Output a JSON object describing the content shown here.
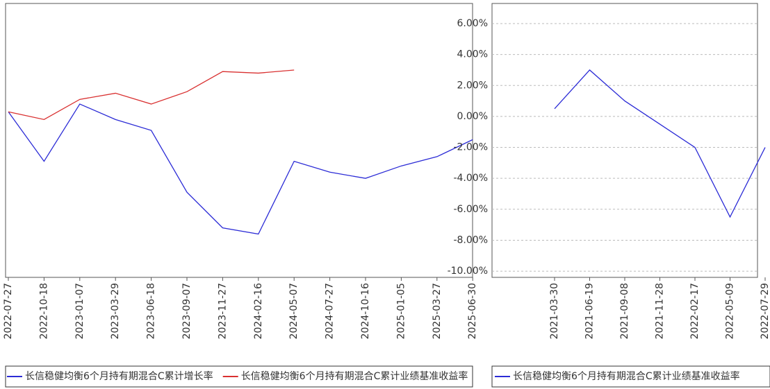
{
  "chart_data": [
    {
      "type": "line",
      "categories": [
        "2022-07-27",
        "2022-10-18",
        "2023-01-07",
        "2023-03-29",
        "2023-06-18",
        "2023-09-07",
        "2023-11-27",
        "2024-02-16",
        "2024-05-07",
        "2024-07-27",
        "2024-10-16",
        "2025-01-05",
        "2025-03-27",
        "2025-06-30"
      ],
      "series": [
        {
          "name": "长信稳健均衡6个月持有期混合C累计增长率",
          "color": "#2b2bd6",
          "values": [
            -0.3,
            -3.5,
            0.2,
            -0.8,
            -1.5,
            -5.5,
            -7.8,
            -8.2,
            -3.5,
            -4.2,
            -4.6,
            -3.8,
            -3.2,
            -2.1
          ]
        },
        {
          "name": "长信稳健均衡6个月持有期混合C累计业绩基准收益率",
          "color": "#d93030",
          "values": [
            -0.3,
            -0.8,
            0.5,
            0.9,
            0.2,
            1.0,
            2.3,
            2.2,
            2.4,
            null,
            null,
            null,
            null,
            null
          ]
        }
      ],
      "ylim": [
        -11,
        6.7
      ],
      "grid": true
    },
    {
      "type": "line",
      "categories": [
        "2021-03-30",
        "2021-06-19",
        "2021-09-08",
        "2021-11-28",
        "2022-02-17",
        "2022-05-09",
        "2022-07-29"
      ],
      "series": [
        {
          "name": "长信稳健均衡6个月持有期混合C累计业绩基准收益率",
          "color": "#2b2bd6",
          "values": [
            0.5,
            3.0,
            1.0,
            -0.5,
            -2.0,
            -6.5,
            -2.0
          ]
        }
      ],
      "ylim": [
        -10.4,
        7.3
      ],
      "yticks": [
        {
          "value": 6,
          "label": "6.00%"
        },
        {
          "value": 4,
          "label": "4.00%"
        },
        {
          "value": 2,
          "label": "2.00%"
        },
        {
          "value": 0,
          "label": "0.00%"
        },
        {
          "value": -2,
          "label": "-2.00%"
        },
        {
          "value": -4,
          "label": "-4.00%"
        },
        {
          "value": -6,
          "label": "-6.00%"
        },
        {
          "value": -8,
          "label": "-8.00%"
        },
        {
          "value": -10,
          "label": "-10.00%"
        }
      ],
      "grid": true
    }
  ]
}
